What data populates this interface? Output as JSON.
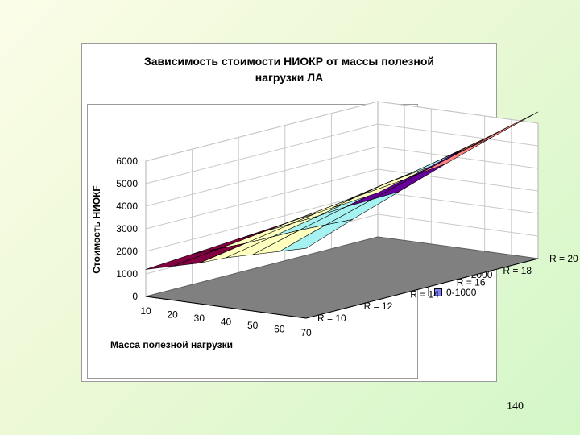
{
  "slide": {
    "page_number": "140",
    "background_colors": [
      "#fbfde8",
      "#d3f7c8"
    ]
  },
  "chart_data": {
    "type": "surface-3d",
    "title": "Зависимость стоимости НИОКР  от массы полезной нагрузки ЛА",
    "title_lines": [
      "Зависимость стоимости НИОКР  от массы полезной",
      "нагрузки ЛА"
    ],
    "xlabel": "Масса полезной нагрузки",
    "ylabel": "Стоимость НИОКF",
    "x": [
      10,
      20,
      30,
      40,
      50,
      60,
      70
    ],
    "series_labels": [
      "R =  10",
      "R =  12",
      "R =  14",
      "R =  16",
      "R =  18",
      "R =  20"
    ],
    "z_ticks": [
      "0",
      "1000",
      "2000",
      "3000",
      "4000",
      "5000",
      "6000"
    ],
    "zlim": [
      0,
      6000
    ],
    "z": [
      [
        1200,
        1500,
        1800,
        2200,
        2500,
        2800,
        3100
      ],
      [
        1350,
        1750,
        2150,
        2600,
        3050,
        3450,
        3850
      ],
      [
        1500,
        2000,
        2500,
        3000,
        3550,
        4050,
        4550
      ],
      [
        1650,
        2250,
        2850,
        3450,
        4050,
        4650,
        5250
      ],
      [
        1800,
        2500,
        3200,
        3850,
        4550,
        5200,
        5900
      ],
      [
        1950,
        2700,
        3450,
        4250,
        5000,
        5750,
        6500
      ]
    ],
    "legend": [
      {
        "label": "5000-6000",
        "color": "#ff8080"
      },
      {
        "label": "4000-5000",
        "color": "#660099"
      },
      {
        "label": "3000-4000",
        "color": "#a6f2f2"
      },
      {
        "label": "2000-3000",
        "color": "#ffffc0"
      },
      {
        "label": "1000-2000",
        "color": "#800040"
      },
      {
        "label": "0-1000",
        "color": "#8080ff"
      }
    ],
    "floor_color": "#808080",
    "grid": true,
    "legend_position": "right"
  }
}
